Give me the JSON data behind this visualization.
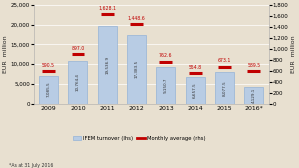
{
  "years": [
    "2009",
    "2010",
    "2011",
    "2012",
    "2013",
    "2014",
    "2015",
    "2016*"
  ],
  "bar_values": [
    7085.5,
    10764.4,
    19536.9,
    17383.5,
    9150.7,
    6657.5,
    8077.5,
    4129.1
  ],
  "monthly_avg": [
    590.5,
    897.0,
    1628.1,
    1448.6,
    762.6,
    554.8,
    673.1,
    589.5
  ],
  "bar_labels": [
    "7,085.5",
    "10,764.4",
    "19,536.9",
    "17,383.5",
    "9,150.7",
    "6,657.5",
    "8,077.5",
    "4,129.1"
  ],
  "avg_labels": [
    "590.5",
    "897.0",
    "1,628.1",
    "1,448.6",
    "762.6",
    "554.8",
    "673.1",
    "589.5"
  ],
  "bar_color": "#b8cce4",
  "bar_edge_color": "#95b3d7",
  "line_color": "#c00000",
  "bg_color": "#e8e0d0",
  "left_ylabel": "EUR  million",
  "right_ylabel": "EUR  million",
  "ylim_left": [
    0,
    25000
  ],
  "ylim_right": [
    0,
    1800
  ],
  "yticks_left": [
    0,
    5000,
    10000,
    15000,
    20000,
    25000
  ],
  "yticks_right": [
    0,
    200,
    400,
    600,
    800,
    1000,
    1200,
    1400,
    1600,
    1800
  ],
  "footnote": "*As at 31 July 2016"
}
